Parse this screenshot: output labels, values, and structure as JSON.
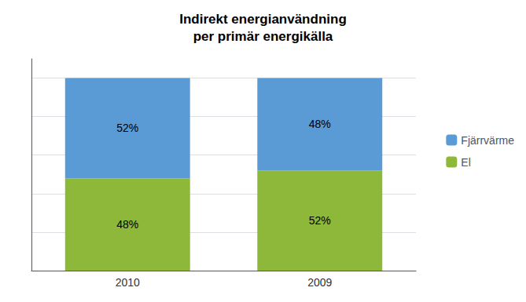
{
  "chart_data": {
    "type": "bar",
    "stacked": true,
    "title": "Indirekt energianvändning\nper primär energikälla",
    "categories": [
      "2010",
      "2009"
    ],
    "series": [
      {
        "name": "El",
        "color": "#8DB83A",
        "values": [
          48,
          52
        ],
        "value_labels": [
          "48%",
          "52%"
        ]
      },
      {
        "name": "Fjärrvärme",
        "color": "#5B9BD5",
        "values": [
          52,
          48
        ],
        "value_labels": [
          "52%",
          "48%"
        ]
      }
    ],
    "ylim": [
      0,
      110
    ],
    "yticks": [
      0,
      20,
      40,
      60,
      80,
      100
    ],
    "grid": true,
    "legend": "right",
    "data_labels": true,
    "tick_labels": "x"
  }
}
